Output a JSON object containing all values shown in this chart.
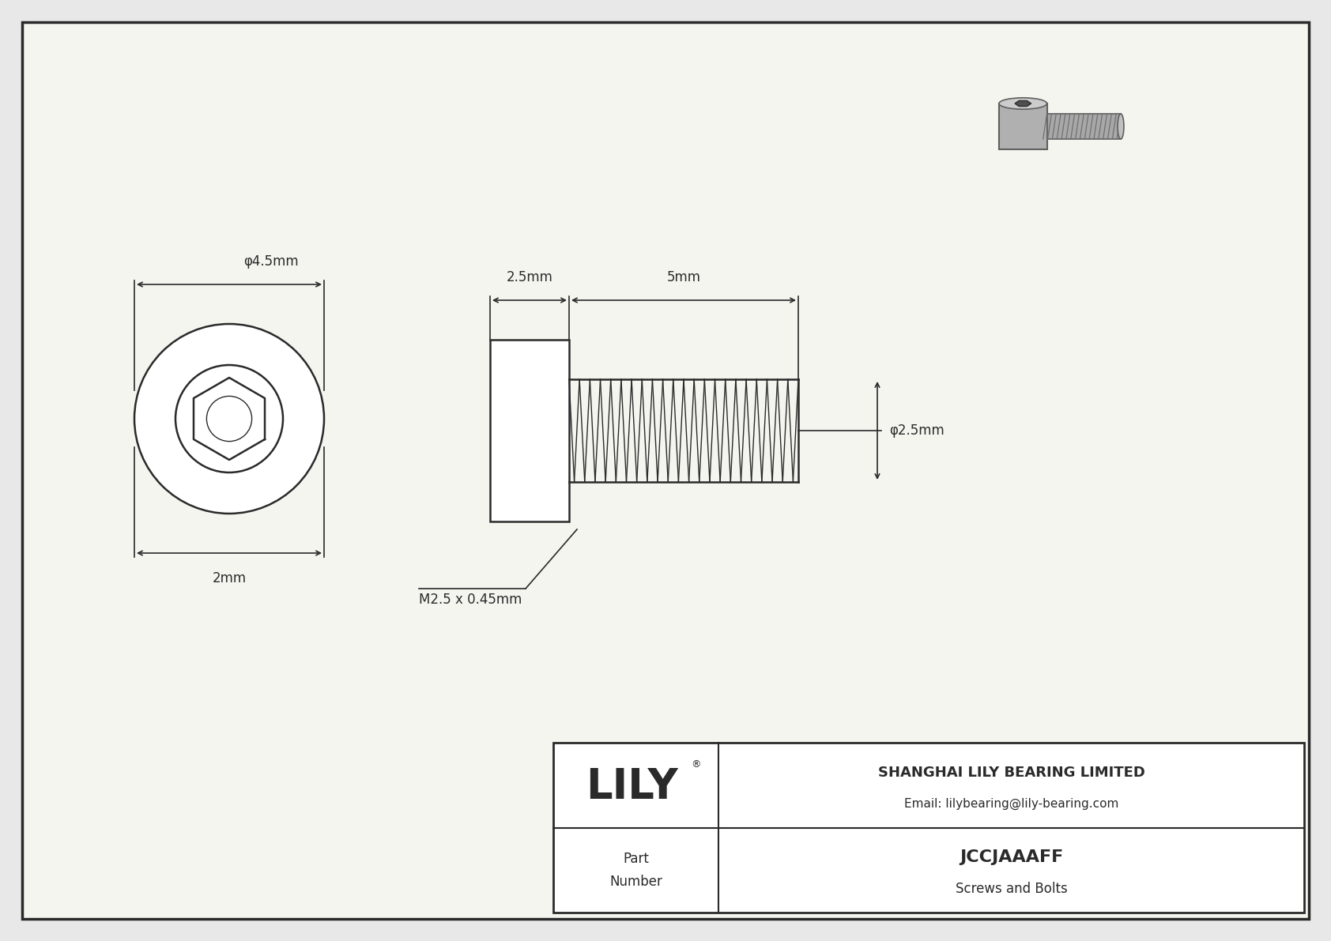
{
  "bg_color": "#e8e8e8",
  "drawing_bg": "#f5f5f0",
  "line_color": "#2a2a2a",
  "company": "SHANGHAI LILY BEARING LIMITED",
  "email": "Email: lilybearing@lily-bearing.com",
  "part_number": "JCCJAAAFF",
  "part_type": "Screws and Bolts",
  "part_label": "Part\nNumber",
  "logo_text": "LILY",
  "logo_reg": "®",
  "dim_head_diam": "φ4.5mm",
  "dim_head_width": "2mm",
  "dim_shaft_head": "2.5mm",
  "dim_shaft_thread": "5mm",
  "dim_thread_diam": "φ2.5mm",
  "dim_thread_spec": "M2.5 x 0.45mm"
}
